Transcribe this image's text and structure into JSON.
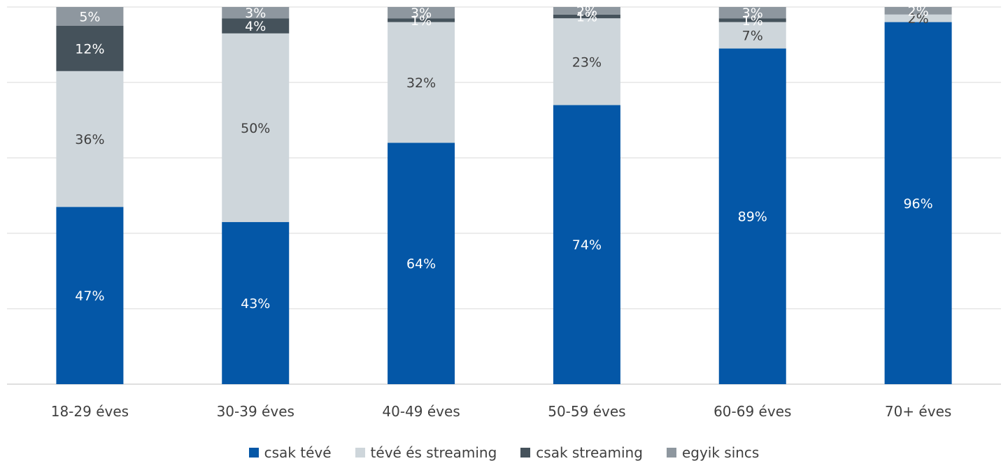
{
  "chart_data": {
    "type": "bar",
    "stacked": true,
    "categories": [
      "18-29 éves",
      "30-39 éves",
      "40-49 éves",
      "50-59 éves",
      "60-69 éves",
      "70+ éves"
    ],
    "series": [
      {
        "name": "csak tévé",
        "color": "#0457A7",
        "values": [
          47,
          43,
          64,
          74,
          89,
          96
        ],
        "labels": [
          "47%",
          "43%",
          "64%",
          "74%",
          "89%",
          "96%"
        ],
        "label_color": "#ffffff"
      },
      {
        "name": "tévé és streaming",
        "color": "#CED6DB",
        "values": [
          36,
          50,
          32,
          23,
          7,
          2
        ],
        "labels": [
          "36%",
          "50%",
          "32%",
          "23%",
          "7%",
          "2%"
        ],
        "label_color": "#404040"
      },
      {
        "name": "csak streaming",
        "color": "#45525B",
        "values": [
          12,
          4,
          1,
          1,
          1,
          0
        ],
        "labels": [
          "12%",
          "4%",
          "1%",
          "1%",
          "1%",
          ""
        ],
        "label_color": "#ffffff"
      },
      {
        "name": "egyik sincs",
        "color": "#8E979F",
        "values": [
          5,
          3,
          3,
          2,
          3,
          2
        ],
        "labels": [
          "5%",
          "3%",
          "3%",
          "2%",
          "3%",
          "2%"
        ],
        "label_color": "#ffffff"
      }
    ],
    "ylim": [
      0,
      100
    ],
    "grid": true,
    "legend_position": "bottom"
  }
}
